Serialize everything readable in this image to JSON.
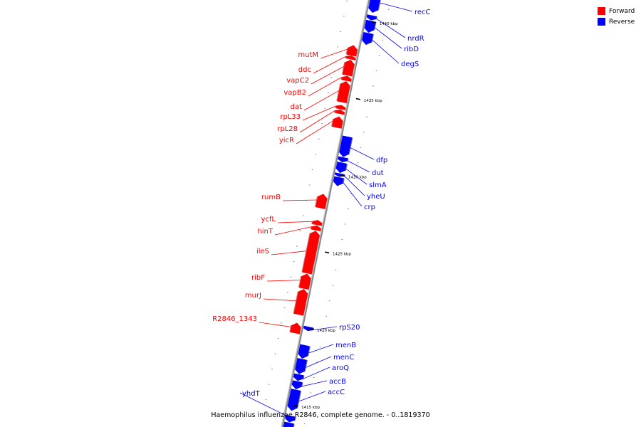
{
  "map": {
    "caption": "Haemophilus influenzae R2846, complete genome. - 0..1819370",
    "colors": {
      "forward": "#ff0000",
      "reverse": "#0000ff",
      "axis": "#888888",
      "tick": "#000000"
    },
    "view": {
      "start_bp": 1413500,
      "end_bp": 1441800,
      "bp_at_top": true
    }
  },
  "legend": [
    {
      "label": "Forward",
      "color": "#ff0000"
    },
    {
      "label": "Reverse",
      "color": "#0000ff"
    }
  ],
  "ticks": [
    {
      "bp": 1415000,
      "label": "1415 kbp"
    },
    {
      "bp": 1420000,
      "label": "1420 kbp"
    },
    {
      "bp": 1425000,
      "label": "1425 kbp"
    },
    {
      "bp": 1430000,
      "label": "1430 kbp"
    },
    {
      "bp": 1435000,
      "label": "1435 kbp"
    },
    {
      "bp": 1440000,
      "label": "1440 kbp"
    }
  ],
  "genes": [
    {
      "name": "recC",
      "strand": "reverse",
      "start_bp": 1440600,
      "end_bp": 1442000
    },
    {
      "name": "nrdR",
      "strand": "reverse",
      "start_bp": 1440100,
      "end_bp": 1440400
    },
    {
      "name": "ribD",
      "strand": "reverse",
      "start_bp": 1439300,
      "end_bp": 1440050
    },
    {
      "name": "degS",
      "strand": "reverse",
      "start_bp": 1438500,
      "end_bp": 1439250
    },
    {
      "name": "mutM",
      "strand": "forward",
      "start_bp": 1437650,
      "end_bp": 1438300
    },
    {
      "name": "ddc",
      "strand": "forward",
      "start_bp": 1437400,
      "end_bp": 1437620
    },
    {
      "name": "vapC2",
      "strand": "forward",
      "start_bp": 1436350,
      "end_bp": 1437350
    },
    {
      "name": "vapB2",
      "strand": "forward",
      "start_bp": 1436000,
      "end_bp": 1436300
    },
    {
      "name": "dat",
      "strand": "forward",
      "start_bp": 1434600,
      "end_bp": 1435950
    },
    {
      "name": "rpL33",
      "strand": "forward",
      "start_bp": 1434150,
      "end_bp": 1434400
    },
    {
      "name": "rpL28",
      "strand": "forward",
      "start_bp": 1433850,
      "end_bp": 1434100
    },
    {
      "name": "yicR",
      "strand": "forward",
      "start_bp": 1432950,
      "end_bp": 1433650
    },
    {
      "name": "dfp",
      "strand": "reverse",
      "start_bp": 1431200,
      "end_bp": 1432500
    },
    {
      "name": "dut",
      "strand": "reverse",
      "start_bp": 1430850,
      "end_bp": 1431150
    },
    {
      "name": "slmA",
      "strand": "reverse",
      "start_bp": 1430150,
      "end_bp": 1430800
    },
    {
      "name": "yheU",
      "strand": "reverse",
      "start_bp": 1429900,
      "end_bp": 1430100
    },
    {
      "name": "crp",
      "strand": "reverse",
      "start_bp": 1429300,
      "end_bp": 1429850
    },
    {
      "name": "rumB",
      "strand": "forward",
      "start_bp": 1427700,
      "end_bp": 1428600
    },
    {
      "name": "ycfL",
      "strand": "forward",
      "start_bp": 1426600,
      "end_bp": 1426900
    },
    {
      "name": "hinT",
      "strand": "forward",
      "start_bp": 1426250,
      "end_bp": 1426550
    },
    {
      "name": "ileS",
      "strand": "forward",
      "start_bp": 1423450,
      "end_bp": 1426200
    },
    {
      "name": "ribF",
      "strand": "forward",
      "start_bp": 1422450,
      "end_bp": 1423400
    },
    {
      "name": "murJ",
      "strand": "forward",
      "start_bp": 1420750,
      "end_bp": 1422400
    },
    {
      "name": "R2846_1343",
      "strand": "forward",
      "start_bp": 1419550,
      "end_bp": 1420200
    },
    {
      "name": "rpS20",
      "strand": "reverse",
      "start_bp": 1419850,
      "end_bp": 1420100
    },
    {
      "name": "menB",
      "strand": "reverse",
      "start_bp": 1418050,
      "end_bp": 1418900
    },
    {
      "name": "menC",
      "strand": "reverse",
      "start_bp": 1417050,
      "end_bp": 1418000
    },
    {
      "name": "aroQ",
      "strand": "reverse",
      "start_bp": 1416600,
      "end_bp": 1417000
    },
    {
      "name": "accB",
      "strand": "reverse",
      "start_bp": 1416050,
      "end_bp": 1416550
    },
    {
      "name": "accC",
      "strand": "reverse",
      "start_bp": 1414650,
      "end_bp": 1416000
    },
    {
      "name": "yhdT",
      "strand": "reverse",
      "start_bp": 1413900,
      "end_bp": 1414300
    },
    {
      "name": "",
      "strand": "reverse",
      "start_bp": 1413200,
      "end_bp": 1413850
    }
  ]
}
